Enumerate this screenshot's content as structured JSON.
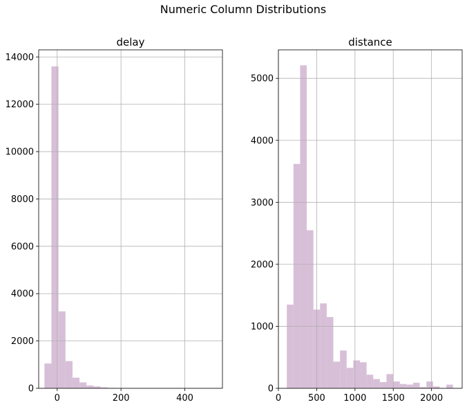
{
  "figure_title": "Numeric Column Distributions",
  "colors": {
    "bar": "#d8bfd8",
    "grid": "#b0b0b0",
    "axis": "#000000"
  },
  "chart_data": [
    {
      "type": "bar",
      "title": "delay",
      "xlabel": "",
      "ylabel": "",
      "xlim": [
        -58,
        518
      ],
      "ylim": [
        0,
        14300
      ],
      "grid": true,
      "xticks": [
        0,
        200,
        400
      ],
      "yticks": [
        0,
        2000,
        4000,
        6000,
        8000,
        10000,
        12000,
        14000
      ],
      "bin_edges": [
        -40,
        -18,
        4,
        26,
        48,
        70,
        92,
        114,
        136,
        158,
        180,
        202,
        224,
        246,
        268,
        290,
        312,
        334,
        356,
        378,
        400,
        422,
        444,
        466,
        488,
        510
      ],
      "values": [
        1050,
        13600,
        3250,
        1150,
        450,
        250,
        120,
        80,
        40,
        20,
        15,
        10,
        8,
        5,
        4,
        3,
        2,
        2,
        1,
        1,
        1,
        1,
        1,
        1,
        1
      ]
    },
    {
      "type": "bar",
      "title": "distance",
      "xlabel": "",
      "ylabel": "",
      "xlim": [
        0,
        2400
      ],
      "ylim": [
        0,
        5460
      ],
      "grid": true,
      "xticks": [
        0,
        500,
        1000,
        1500,
        2000
      ],
      "yticks": [
        0,
        1000,
        2000,
        3000,
        4000,
        5000
      ],
      "bin_edges": [
        110,
        196.8,
        283.6,
        370.4,
        457.2,
        544,
        630.8,
        717.6,
        804.4,
        891.2,
        978,
        1064.8,
        1151.6,
        1238.4,
        1325.2,
        1412,
        1498.8,
        1585.6,
        1672.4,
        1759.2,
        1846,
        1932.8,
        2019.6,
        2106.4,
        2193.2,
        2280
      ],
      "values": [
        1350,
        3620,
        5210,
        2550,
        1270,
        1370,
        1150,
        430,
        610,
        330,
        450,
        420,
        220,
        150,
        100,
        230,
        110,
        70,
        60,
        90,
        20,
        110,
        30,
        0,
        60
      ]
    }
  ]
}
